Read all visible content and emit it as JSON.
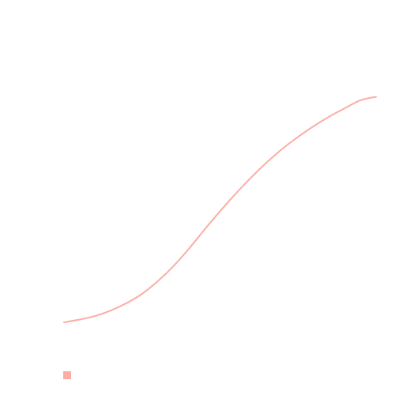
{
  "chart_data": {
    "type": "line",
    "title": "",
    "xlabel": "",
    "ylabel": "",
    "grid": false,
    "axes_visible": false,
    "legend": "bottom-left",
    "xlim": [
      0,
      1
    ],
    "ylim": [
      0,
      1
    ],
    "series": [
      {
        "color": "#fbaea3",
        "x": [
          0.0,
          0.05,
          0.1,
          0.15,
          0.2,
          0.25,
          0.3,
          0.35,
          0.4,
          0.45,
          0.5,
          0.55,
          0.6,
          0.65,
          0.7,
          0.75,
          0.8,
          0.85,
          0.9,
          0.95,
          1.0
        ],
        "y": [
          0.0,
          0.012,
          0.028,
          0.052,
          0.084,
          0.125,
          0.18,
          0.246,
          0.323,
          0.407,
          0.488,
          0.565,
          0.637,
          0.703,
          0.763,
          0.815,
          0.862,
          0.904,
          0.941,
          0.976,
          0.991
        ]
      }
    ]
  }
}
